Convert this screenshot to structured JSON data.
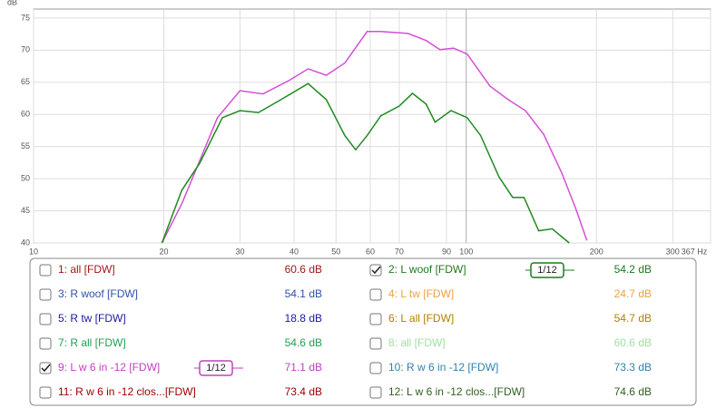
{
  "chart_data": {
    "type": "line",
    "y_label": "dB",
    "log_x": true,
    "grid": true,
    "xlim": [
      10,
      367
    ],
    "ylim": [
      40,
      76.4
    ],
    "xticks": [
      10,
      20,
      30,
      40,
      50,
      60,
      70,
      90,
      100,
      200,
      300,
      {
        "value": 367,
        "label": "367 Hz"
      }
    ],
    "yticks": [
      40,
      45,
      50,
      55,
      60,
      65,
      70,
      75
    ],
    "series": [
      {
        "color": "#d64fd6",
        "x": [
          19.8,
          22,
          23.6,
          26.6,
          30,
          33.9,
          39.2,
          43.1,
          47.5,
          52.4,
          59,
          63.5,
          73.3,
          80.8,
          86.9,
          93.5,
          100.5,
          113.5,
          125,
          137,
          151,
          166,
          179,
          190
        ],
        "values": [
          40,
          46.1,
          51,
          59.5,
          63.7,
          63.2,
          65.4,
          67.1,
          66.1,
          68,
          72.9,
          72.9,
          72.6,
          71.5,
          70.1,
          70.3,
          69.4,
          64.4,
          62.3,
          60.6,
          56.9,
          51,
          45.4,
          40.4
        ]
      },
      {
        "color": "#1f8a1f",
        "x": [
          19.8,
          22,
          24.2,
          27.3,
          30,
          33.1,
          37.3,
          43.1,
          47.5,
          52.4,
          55.5,
          59,
          63.5,
          70,
          75.1,
          80.8,
          84.7,
          92.2,
          100.5,
          108,
          119,
          128,
          136,
          147,
          158,
          173
        ],
        "values": [
          40,
          48.2,
          52.4,
          59.5,
          60.6,
          60.3,
          62.3,
          64.8,
          62.3,
          56.7,
          54.5,
          56.7,
          59.8,
          61.3,
          63.3,
          61.6,
          58.8,
          60.6,
          59.5,
          56.7,
          50.3,
          47.1,
          47.1,
          41.9,
          42.2,
          40
        ]
      }
    ]
  },
  "measurements": [
    {
      "name": "1: all [FDW]",
      "level": "60.6 dB",
      "checked": false,
      "color": "#a01818"
    },
    {
      "name": "2: L woof [FDW]",
      "level": "54.2 dB",
      "checked": true,
      "color": "#1f7a1f",
      "smoothing": "1/12"
    },
    {
      "name": "3: R woof [FDW]",
      "level": "54.1 dB",
      "checked": false,
      "color": "#3050b0"
    },
    {
      "name": "4: L tw [FDW]",
      "level": "24.7 dB",
      "checked": false,
      "color": "#f0a040"
    },
    {
      "name": "5: R tw [FDW]",
      "level": "18.8 dB",
      "checked": false,
      "color": "#1a1aa0"
    },
    {
      "name": "6: L all [FDW]",
      "level": "54.7 dB",
      "checked": false,
      "color": "#b08000"
    },
    {
      "name": "7: R all [FDW]",
      "level": "54.6 dB",
      "checked": false,
      "color": "#20a050"
    },
    {
      "name": "8: all [FDW]",
      "level": "60.6 dB",
      "checked": false,
      "color": "#a0e0a0"
    },
    {
      "name": "9: L w 6 in -12 [FDW]",
      "level": "71.1 dB",
      "checked": true,
      "color": "#c040c0",
      "smoothing": "1/12"
    },
    {
      "name": "10: R w 6 in -12 [FDW]",
      "level": "73.3 dB",
      "checked": false,
      "color": "#3080b0"
    },
    {
      "name": "11: R w 6 in -12 clos...[FDW]",
      "level": "73.4 dB",
      "checked": false,
      "color": "#a00000"
    },
    {
      "name": "12: L w 6 in -12 clos...[FDW]",
      "level": "74.6 dB",
      "checked": false,
      "color": "#306020"
    }
  ]
}
